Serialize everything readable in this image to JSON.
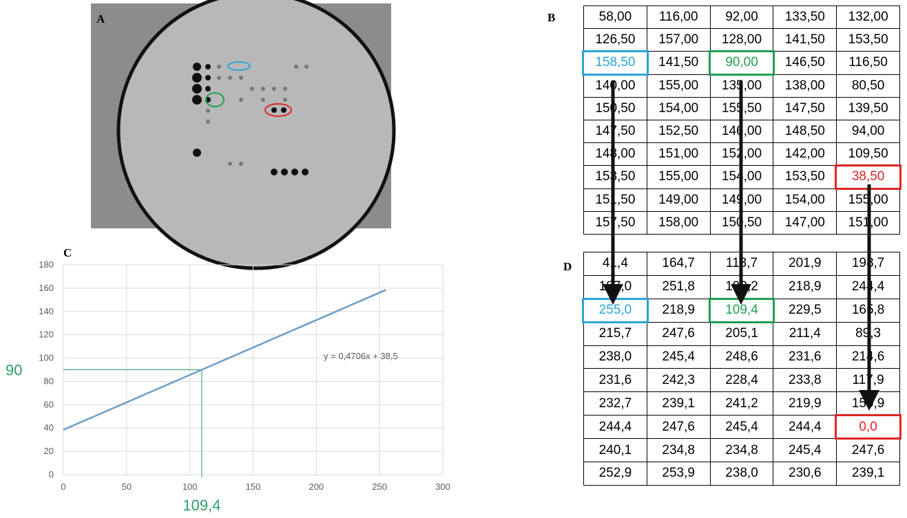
{
  "panels": {
    "a": "A",
    "b": "B",
    "c": "C",
    "d": "D"
  },
  "table_b": {
    "rows": [
      [
        "58,00",
        "116,00",
        "92,00",
        "133,50",
        "132,00"
      ],
      [
        "126,50",
        "157,00",
        "128,00",
        "141,50",
        "153,50"
      ],
      [
        "158,50",
        "141,50",
        "90,00",
        "146,50",
        "116,50"
      ],
      [
        "140,00",
        "155,00",
        "135,00",
        "138,00",
        "80,50"
      ],
      [
        "150,50",
        "154,00",
        "155,50",
        "147,50",
        "139,50"
      ],
      [
        "147,50",
        "152,50",
        "146,00",
        "148,50",
        "94,00"
      ],
      [
        "148,00",
        "151,00",
        "152,00",
        "142,00",
        "109,50"
      ],
      [
        "153,50",
        "155,00",
        "154,00",
        "153,50",
        "38,50"
      ],
      [
        "151,50",
        "149,00",
        "149,00",
        "154,00",
        "155,00"
      ],
      [
        "157,50",
        "158,00",
        "150,50",
        "147,00",
        "151,00"
      ]
    ]
  },
  "table_d": {
    "rows": [
      [
        "41,4",
        "164,7",
        "113,7",
        "201,9",
        "198,7"
      ],
      [
        "187,0",
        "251,8",
        "190,2",
        "218,9",
        "244,4"
      ],
      [
        "255,0",
        "218,9",
        "109,4",
        "229,5",
        "165,8"
      ],
      [
        "215,7",
        "247,6",
        "205,1",
        "211,4",
        "89,3"
      ],
      [
        "238,0",
        "245,4",
        "248,6",
        "231,6",
        "214,6"
      ],
      [
        "231,6",
        "242,3",
        "228,4",
        "233,8",
        "117,9"
      ],
      [
        "232,7",
        "239,1",
        "241,2",
        "219,9",
        "150,9"
      ],
      [
        "244,4",
        "247,6",
        "245,4",
        "244,4",
        "0,0"
      ],
      [
        "240,1",
        "234,8",
        "234,8",
        "245,4",
        "247,6"
      ],
      [
        "252,9",
        "253,9",
        "238,0",
        "230,6",
        "239,1"
      ]
    ]
  },
  "highlights": [
    {
      "row": 2,
      "col": 0,
      "color": "#2aa5d8"
    },
    {
      "row": 2,
      "col": 2,
      "color": "#1f9e50"
    },
    {
      "row": 7,
      "col": 4,
      "color": "#e02424"
    }
  ],
  "chart_data": {
    "type": "line",
    "x": [
      0,
      255
    ],
    "series": [
      {
        "color": "#6a9cc9",
        "values": [
          38.5,
          158.5
        ]
      }
    ],
    "xlim": [
      0,
      300
    ],
    "xticks": [
      0,
      50,
      100,
      150,
      200,
      250,
      300
    ],
    "ylim": [
      0,
      180
    ],
    "yticks": [
      0,
      20,
      40,
      60,
      80,
      100,
      120,
      140,
      160,
      180
    ],
    "grid": true,
    "equation": "y = 0,4706x + 38,5",
    "guide": {
      "color": "#2e9e6a",
      "x": {
        "value": 109.4,
        "label": "109,4"
      },
      "y": 90
    }
  }
}
